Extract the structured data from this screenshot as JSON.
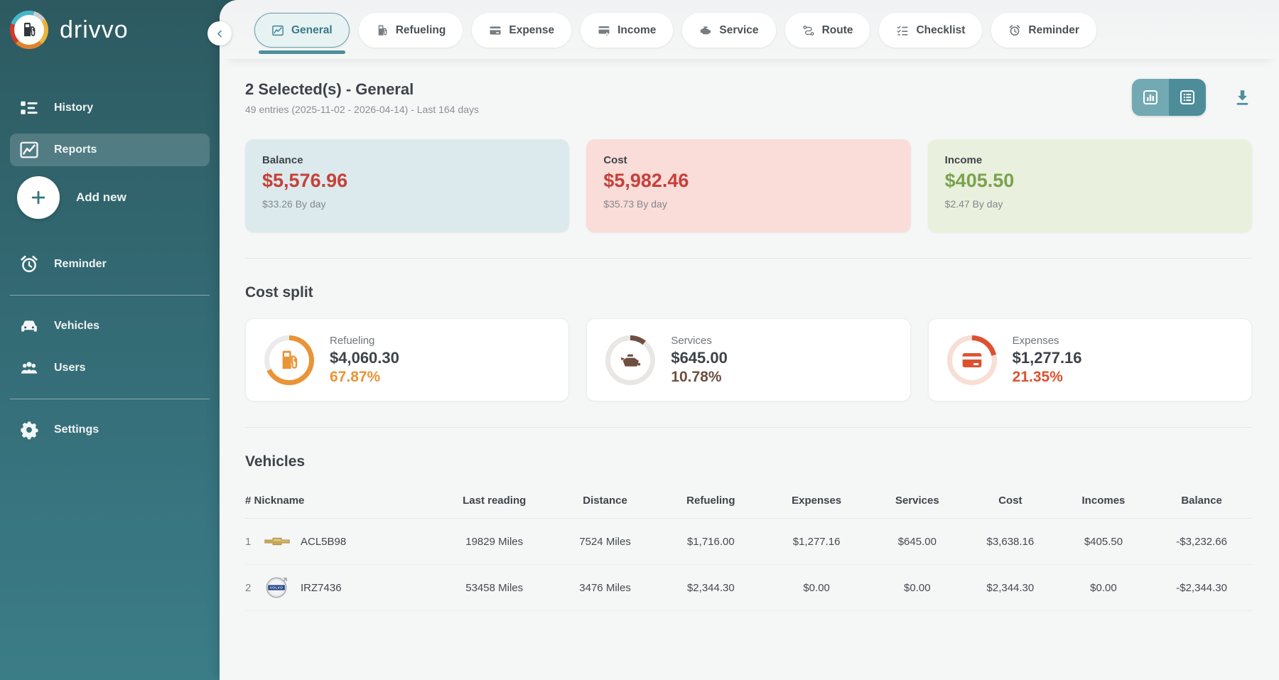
{
  "colors": {
    "accent": "#4e8f9b",
    "sidebar_top": "#2d5a61",
    "sidebar_bottom": "#3b7d87"
  },
  "app": {
    "name": "drivvo"
  },
  "sidebar": {
    "items": [
      {
        "id": "history",
        "label": "History",
        "icon": "icon-history"
      },
      {
        "id": "reports",
        "label": "Reports",
        "icon": "icon-reports",
        "active": true
      },
      {
        "id": "add-new",
        "label": "Add new",
        "icon": "icon-plus",
        "type": "fab"
      },
      {
        "id": "reminder",
        "label": "Reminder",
        "icon": "icon-alarm"
      },
      {
        "type": "divider"
      },
      {
        "id": "vehicles",
        "label": "Vehicles",
        "icon": "icon-car"
      },
      {
        "id": "users",
        "label": "Users",
        "icon": "icon-users"
      },
      {
        "type": "divider"
      },
      {
        "id": "settings",
        "label": "Settings",
        "icon": "icon-gear"
      }
    ]
  },
  "tabs": [
    {
      "id": "general",
      "label": "General",
      "icon": "icon-chart",
      "active": true
    },
    {
      "id": "refueling",
      "label": "Refueling",
      "icon": "icon-fuel"
    },
    {
      "id": "expense",
      "label": "Expense",
      "icon": "icon-card"
    },
    {
      "id": "income",
      "label": "Income",
      "icon": "icon-card-plus"
    },
    {
      "id": "service",
      "label": "Service",
      "icon": "icon-engine"
    },
    {
      "id": "route",
      "label": "Route",
      "icon": "icon-route"
    },
    {
      "id": "checklist",
      "label": "Checklist",
      "icon": "icon-checklist"
    },
    {
      "id": "reminder",
      "label": "Reminder",
      "icon": "icon-alarm"
    }
  ],
  "report_header": {
    "title": "2 Selected(s) - General",
    "subtitle": "49 entries (2025-11-02 - 2026-04-14) - Last 164 days",
    "view_toggle": [
      {
        "name": "chart-view",
        "icon": "icon-bars"
      },
      {
        "name": "list-view",
        "icon": "icon-list",
        "active": true
      }
    ]
  },
  "summary_cards": [
    {
      "label": "Balance",
      "value": "$5,576.96",
      "per_day": "$33.26 By day",
      "bg": "#dceaed",
      "value_color": "#c5413a"
    },
    {
      "label": "Cost",
      "value": "$5,982.46",
      "per_day": "$35.73 By day",
      "bg": "#fadcd8",
      "value_color": "#c5413a"
    },
    {
      "label": "Income",
      "value": "$405.50",
      "per_day": "$2.47 By day",
      "bg": "#e9f0dd",
      "value_color": "#7ba24f"
    }
  ],
  "cost_split": {
    "heading": "Cost split",
    "items": [
      {
        "label": "Refueling",
        "value": "$4,060.30",
        "percent": "67.87%",
        "percent_value": 67.87,
        "color": "#e99437",
        "track": "#ebebeb",
        "icon": "icon-fuel"
      },
      {
        "label": "Services",
        "value": "$645.00",
        "percent": "10.78%",
        "percent_value": 10.78,
        "color": "#6e4f41",
        "track": "#e9e7e5",
        "icon": "icon-oil"
      },
      {
        "label": "Expenses",
        "value": "$1,277.16",
        "percent": "21.35%",
        "percent_value": 21.35,
        "color": "#dd5130",
        "track": "#f8ded5",
        "icon": "icon-card"
      }
    ]
  },
  "vehicles_table": {
    "heading": "Vehicles",
    "columns": [
      "# Nickname",
      "Last reading",
      "Distance",
      "Refueling",
      "Expenses",
      "Services",
      "Cost",
      "Incomes",
      "Balance"
    ],
    "rows": [
      {
        "index": "1",
        "logo": "chevrolet",
        "nickname": "ACL5B98",
        "cells": [
          "19829 Miles",
          "7524 Miles",
          "$1,716.00",
          "$1,277.16",
          "$645.00",
          "$3,638.16",
          "$405.50",
          "-$3,232.66"
        ]
      },
      {
        "index": "2",
        "logo": "volvo",
        "nickname": "IRZ7436",
        "cells": [
          "53458 Miles",
          "3476 Miles",
          "$2,344.30",
          "$0.00",
          "$0.00",
          "$2,344.30",
          "$0.00",
          "-$2,344.30"
        ]
      }
    ]
  }
}
